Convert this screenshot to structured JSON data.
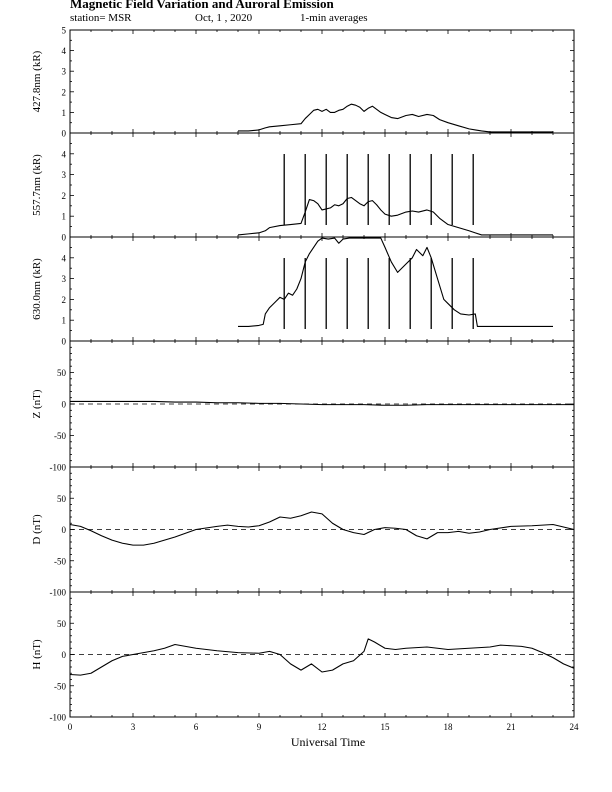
{
  "header": {
    "title": "Magnetic Field Variation and Auroral Emission",
    "station": "station= MSR",
    "date": "Oct, 1  , 2020",
    "averaging": "1-min averages"
  },
  "chart_data": [
    {
      "type": "line",
      "ylabel": "427.8nm (kR)",
      "ylim": [
        0,
        5
      ],
      "yticks": [
        0,
        1,
        2,
        3,
        4,
        5
      ],
      "xlim": [
        0,
        24
      ],
      "grid": false,
      "series": [
        {
          "x": [
            8.0,
            8.5,
            9.0,
            9.3,
            9.5,
            10.0,
            10.5,
            11.0,
            11.2,
            11.4,
            11.6,
            11.8,
            12.0,
            12.2,
            12.4,
            12.6,
            12.8,
            13.0,
            13.2,
            13.4,
            13.6,
            13.8,
            14.0,
            14.2,
            14.4,
            14.6,
            14.8,
            15.0,
            15.3,
            15.6,
            16.0,
            16.3,
            16.6,
            17.0,
            17.3,
            17.6,
            18.0,
            18.5,
            19.0,
            19.3,
            19.6,
            20.0,
            21.0,
            22.0,
            23.0
          ],
          "y": [
            0.1,
            0.1,
            0.15,
            0.25,
            0.3,
            0.35,
            0.4,
            0.45,
            0.7,
            0.9,
            1.1,
            1.15,
            1.05,
            1.15,
            1.0,
            1.0,
            1.1,
            1.15,
            1.3,
            1.4,
            1.35,
            1.25,
            1.05,
            1.2,
            1.3,
            1.15,
            1.0,
            0.9,
            0.75,
            0.7,
            0.85,
            0.9,
            0.8,
            0.9,
            0.85,
            0.65,
            0.5,
            0.35,
            0.2,
            0.15,
            0.1,
            0.05,
            0.05,
            0.05,
            0.05
          ]
        }
      ],
      "markers": []
    },
    {
      "type": "line",
      "ylabel": "557.7nm (kR)",
      "ylim": [
        0,
        5
      ],
      "yticks": [
        0,
        1,
        2,
        3,
        4
      ],
      "xlim": [
        0,
        24
      ],
      "grid": false,
      "series": [
        {
          "x": [
            8.0,
            8.5,
            9.0,
            9.3,
            9.5,
            10.0,
            10.5,
            11.0,
            11.2,
            11.4,
            11.6,
            11.8,
            12.0,
            12.2,
            12.4,
            12.6,
            12.8,
            13.0,
            13.2,
            13.4,
            13.6,
            13.8,
            14.0,
            14.2,
            14.4,
            14.6,
            14.8,
            15.0,
            15.3,
            15.6,
            16.0,
            16.3,
            16.6,
            17.0,
            17.3,
            17.6,
            18.0,
            18.5,
            19.0,
            19.3,
            19.6,
            20.0,
            21.0,
            22.0,
            23.0
          ],
          "y": [
            0.1,
            0.15,
            0.2,
            0.3,
            0.45,
            0.55,
            0.6,
            0.65,
            1.2,
            1.8,
            1.75,
            1.6,
            1.3,
            1.35,
            1.4,
            1.55,
            1.5,
            1.6,
            1.85,
            1.9,
            1.75,
            1.6,
            1.5,
            1.7,
            1.75,
            1.55,
            1.3,
            1.1,
            1.0,
            1.05,
            1.2,
            1.25,
            1.2,
            1.3,
            1.2,
            0.9,
            0.6,
            0.45,
            0.3,
            0.2,
            0.1,
            0.1,
            0.1,
            0.1,
            0.1
          ]
        }
      ],
      "markers": [
        10.2,
        11.2,
        12.2,
        13.2,
        14.2,
        15.2,
        16.2,
        17.2,
        18.2,
        19.2
      ]
    },
    {
      "type": "line",
      "ylabel": "630.0nm (kR)",
      "ylim": [
        0,
        5
      ],
      "yticks": [
        0,
        1,
        2,
        3,
        4
      ],
      "xlim": [
        0,
        24
      ],
      "grid": false,
      "series": [
        {
          "x": [
            8.0,
            8.5,
            9.0,
            9.2,
            9.3,
            9.5,
            9.8,
            10.0,
            10.2,
            10.4,
            10.6,
            10.8,
            11.0,
            11.2,
            11.4,
            11.6,
            11.8,
            12.0,
            12.3,
            12.6,
            12.8,
            13.0,
            13.3,
            13.6,
            14.0,
            14.4,
            14.8,
            15.0,
            15.3,
            15.6,
            16.0,
            16.3,
            16.5,
            16.8,
            17.0,
            17.2,
            17.5,
            17.8,
            18.0,
            18.3,
            18.6,
            19.0,
            19.3,
            19.4,
            20.0,
            21.0,
            22.0,
            23.0
          ],
          "y": [
            0.7,
            0.7,
            0.75,
            0.8,
            1.3,
            1.6,
            1.9,
            2.1,
            2.0,
            2.3,
            2.2,
            2.5,
            3.0,
            3.8,
            4.2,
            4.5,
            4.8,
            4.95,
            4.9,
            4.95,
            4.7,
            4.9,
            4.95,
            4.95,
            4.95,
            4.95,
            4.95,
            4.5,
            3.8,
            3.3,
            3.7,
            4.0,
            4.4,
            4.1,
            4.5,
            4.0,
            3.0,
            2.0,
            1.8,
            1.5,
            1.3,
            1.25,
            1.3,
            0.7,
            0.7,
            0.7,
            0.7,
            0.7
          ]
        }
      ],
      "markers": [
        10.2,
        11.2,
        12.2,
        13.2,
        14.2,
        15.2,
        16.2,
        17.2,
        18.2,
        19.2
      ]
    },
    {
      "type": "line",
      "ylabel": "Z (nT)",
      "ylim": [
        -100,
        100
      ],
      "yticks": [
        -100,
        -50,
        0,
        50
      ],
      "xlim": [
        0,
        24
      ],
      "zero_line": "dashed",
      "series": [
        {
          "x": [
            0,
            1,
            2,
            3,
            4,
            5,
            6,
            7,
            8,
            9,
            10,
            11,
            12,
            13,
            14,
            15,
            16,
            17,
            18,
            19,
            20,
            21,
            22,
            23,
            24
          ],
          "y": [
            4,
            4,
            4,
            4,
            4,
            3,
            3,
            2,
            2,
            1,
            1,
            0,
            -1,
            -1,
            -1,
            -2,
            -2,
            -1,
            -1,
            -1,
            -1,
            -1,
            -1,
            -1,
            -1
          ]
        }
      ],
      "markers": []
    },
    {
      "type": "line",
      "ylabel": "D (nT)",
      "ylim": [
        -100,
        100
      ],
      "yticks": [
        -100,
        -50,
        0,
        50
      ],
      "xlim": [
        0,
        24
      ],
      "zero_line": "dashed",
      "series": [
        {
          "x": [
            0,
            0.5,
            1,
            1.5,
            2,
            2.5,
            3,
            3.5,
            4,
            5,
            6,
            7,
            7.5,
            8,
            8.5,
            9,
            9.5,
            10,
            10.5,
            11,
            11.5,
            12,
            12.5,
            13,
            13.5,
            14,
            14.5,
            15,
            15.5,
            16,
            16.5,
            17,
            17.5,
            18,
            18.5,
            19,
            19.5,
            20,
            21,
            22,
            23,
            24
          ],
          "y": [
            8,
            5,
            -2,
            -10,
            -17,
            -22,
            -25,
            -25,
            -22,
            -12,
            0,
            5,
            7,
            5,
            4,
            6,
            12,
            20,
            18,
            22,
            28,
            25,
            10,
            0,
            -5,
            -8,
            0,
            3,
            2,
            0,
            -10,
            -15,
            -5,
            -5,
            -3,
            -6,
            -4,
            0,
            5,
            6,
            8,
            0
          ]
        }
      ],
      "markers": []
    },
    {
      "type": "line",
      "ylabel": "H (nT)",
      "ylim": [
        -100,
        100
      ],
      "yticks": [
        -100,
        -50,
        0,
        50
      ],
      "xlim": [
        0,
        24
      ],
      "xticks": [
        0,
        3,
        6,
        9,
        12,
        15,
        18,
        21,
        24
      ],
      "xlabel": "Universal Time",
      "zero_line": "dashed",
      "series": [
        {
          "x": [
            0,
            0.5,
            1,
            1.5,
            2,
            2.5,
            3,
            3.5,
            4,
            4.5,
            5,
            5.5,
            6,
            7,
            8,
            9,
            9.5,
            10,
            10.5,
            11,
            11.5,
            12,
            12.5,
            13,
            13.5,
            14,
            14.2,
            14.5,
            15,
            15.5,
            16,
            17,
            18,
            19,
            20,
            20.5,
            21,
            21.5,
            22,
            22.5,
            23,
            23.5,
            24
          ],
          "y": [
            -32,
            -33,
            -30,
            -20,
            -10,
            -3,
            0,
            3,
            6,
            10,
            16,
            13,
            10,
            6,
            3,
            2,
            5,
            0,
            -15,
            -25,
            -15,
            -28,
            -25,
            -15,
            -10,
            5,
            25,
            20,
            10,
            8,
            10,
            12,
            8,
            10,
            12,
            15,
            14,
            13,
            10,
            3,
            -5,
            -15,
            -22
          ]
        }
      ],
      "markers": []
    }
  ]
}
